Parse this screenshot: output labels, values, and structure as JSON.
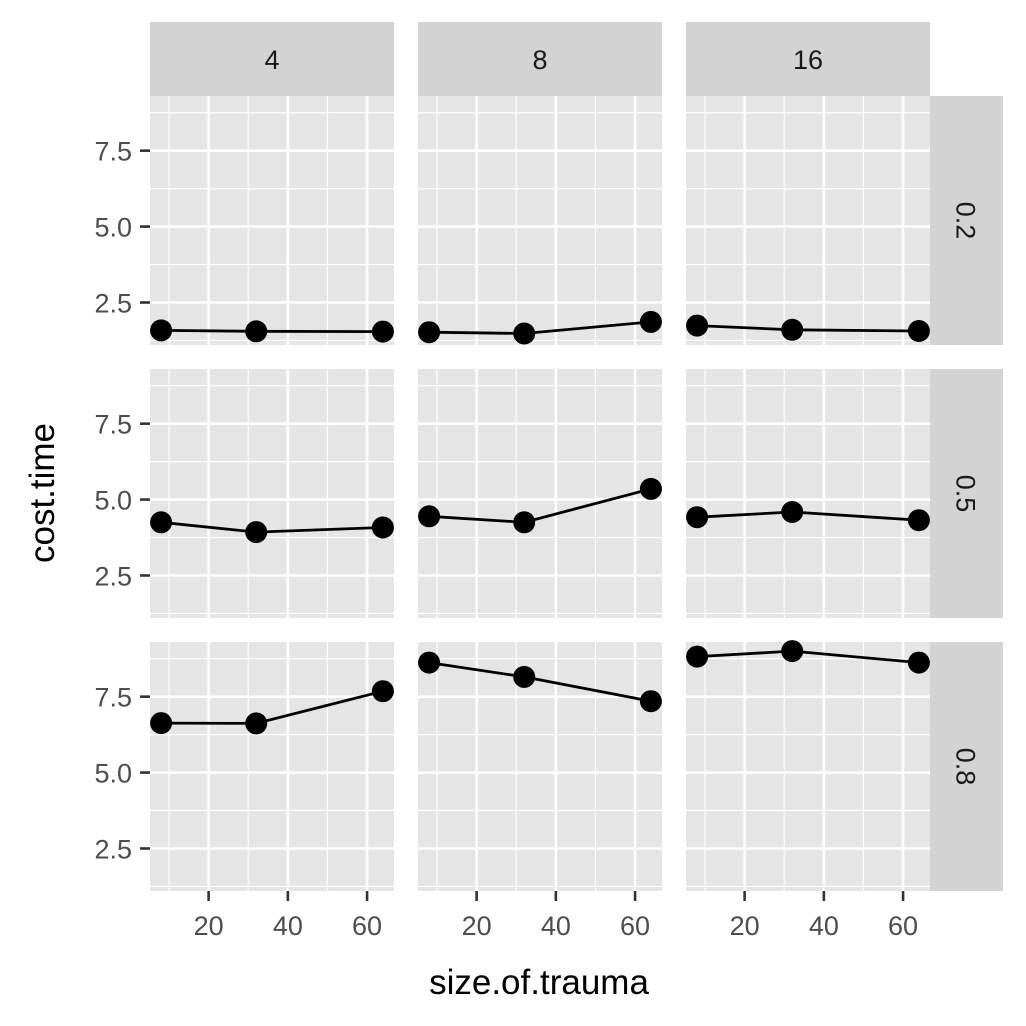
{
  "chart_data": {
    "type": "line",
    "xlabel": "size.of.trauma",
    "ylabel": "cost.time",
    "col_facets": [
      "4",
      "8",
      "16"
    ],
    "row_facets": [
      "0.2",
      "0.5",
      "0.8"
    ],
    "x_ticks": [
      20,
      40,
      60
    ],
    "y_ticks": [
      2.5,
      5.0,
      7.5
    ],
    "y_tick_labels": [
      "2.5",
      "5.0",
      "7.5"
    ],
    "x_tick_labels": [
      "20",
      "40",
      "60"
    ],
    "xlim": [
      5.2,
      66.8
    ],
    "ylim": [
      1.1,
      9.3
    ],
    "grid": true,
    "x": [
      8,
      32,
      64
    ],
    "panels": [
      {
        "col": "4",
        "row": "0.2",
        "values": [
          1.58,
          1.55,
          1.54
        ]
      },
      {
        "col": "8",
        "row": "0.2",
        "values": [
          1.52,
          1.48,
          1.86
        ]
      },
      {
        "col": "16",
        "row": "0.2",
        "values": [
          1.74,
          1.6,
          1.56
        ]
      },
      {
        "col": "4",
        "row": "0.5",
        "values": [
          4.25,
          3.93,
          4.08
        ]
      },
      {
        "col": "8",
        "row": "0.5",
        "values": [
          4.45,
          4.25,
          5.35
        ]
      },
      {
        "col": "16",
        "row": "0.5",
        "values": [
          4.42,
          4.59,
          4.32
        ]
      },
      {
        "col": "4",
        "row": "0.8",
        "values": [
          6.63,
          6.62,
          7.68
        ]
      },
      {
        "col": "8",
        "row": "0.8",
        "values": [
          8.62,
          8.15,
          7.35
        ]
      },
      {
        "col": "16",
        "row": "0.8",
        "values": [
          8.82,
          9.0,
          8.62
        ]
      }
    ]
  }
}
